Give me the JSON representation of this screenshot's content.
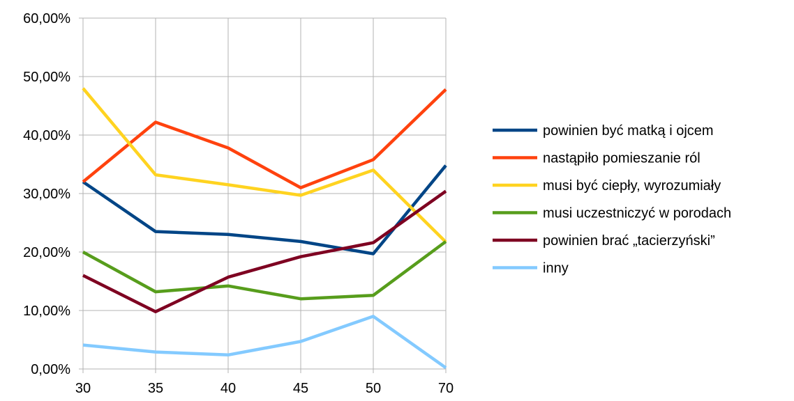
{
  "chart_data": {
    "type": "line",
    "title": "",
    "xlabel": "",
    "ylabel": "",
    "categories": [
      "30",
      "35",
      "40",
      "45",
      "50",
      "70"
    ],
    "yticks": [
      "0,00%",
      "10,00%",
      "20,00%",
      "30,00%",
      "40,00%",
      "50,00%",
      "60,00%"
    ],
    "ylim": [
      0,
      60
    ],
    "grid": "horizontal-and-vertical",
    "legend_position": "right",
    "series": [
      {
        "name": "powinien być matką i ojcem",
        "color": "#004586",
        "values": [
          32.0,
          23.5,
          23.0,
          21.8,
          19.7,
          34.8
        ]
      },
      {
        "name": "nastąpiło pomieszanie ról",
        "color": "#ff420e",
        "values": [
          32.0,
          42.2,
          37.8,
          31.0,
          35.8,
          47.8
        ]
      },
      {
        "name": "musi być ciepły, wyrozumiały",
        "color": "#ffd320",
        "values": [
          48.0,
          33.2,
          31.5,
          29.7,
          34.0,
          21.7
        ]
      },
      {
        "name": "musi uczestniczyć w porodach",
        "color": "#579d1c",
        "values": [
          20.0,
          13.2,
          14.2,
          12.0,
          12.6,
          21.8
        ]
      },
      {
        "name": "powinien brać „tacierzyński”",
        "color": "#7e0021",
        "values": [
          16.0,
          9.8,
          15.7,
          19.2,
          21.6,
          30.4
        ]
      },
      {
        "name": "inny",
        "color": "#83caff",
        "values": [
          4.1,
          2.9,
          2.4,
          4.7,
          9.0,
          0.2
        ]
      }
    ]
  }
}
